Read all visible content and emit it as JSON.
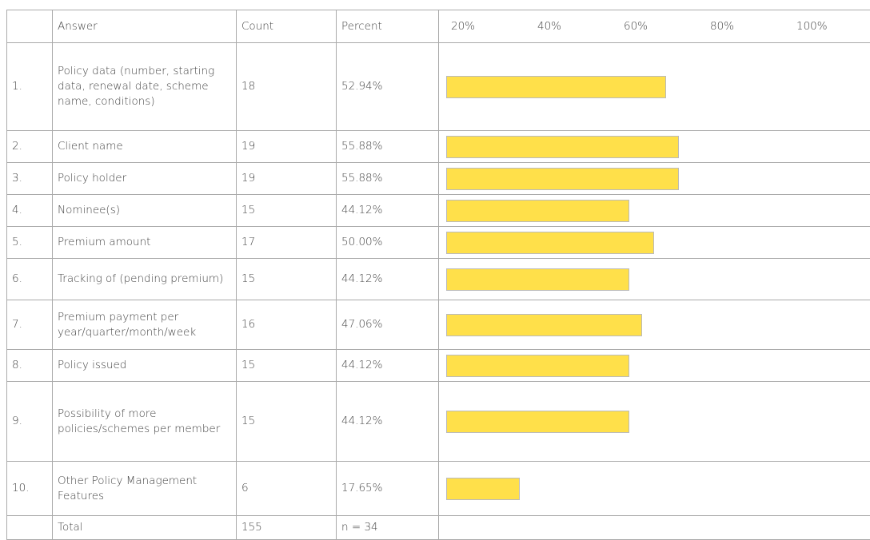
{
  "table": {
    "header": {
      "answer": "Answer",
      "count": "Count",
      "percent": "Percent"
    },
    "axis_ticks": [
      {
        "value": 20,
        "label": "20%"
      },
      {
        "value": 40,
        "label": "40%"
      },
      {
        "value": 60,
        "label": "60%"
      },
      {
        "value": 80,
        "label": "80%"
      },
      {
        "value": 100,
        "label": "100%"
      }
    ],
    "bar_color": "#ffe04a",
    "rows": [
      {
        "index": "1.",
        "answer": "Policy data (number, starting data, renewal date, scheme name, conditions)",
        "count": 18,
        "percent": {
          "value": 52.94,
          "label": "52.94%"
        }
      },
      {
        "index": "2.",
        "answer": "Client name",
        "count": 19,
        "percent": {
          "value": 55.88,
          "label": "55.88%"
        }
      },
      {
        "index": "3.",
        "answer": "Policy holder",
        "count": 19,
        "percent": {
          "value": 55.88,
          "label": "55.88%"
        }
      },
      {
        "index": "4.",
        "answer": "Nominee(s)",
        "count": 15,
        "percent": {
          "value": 44.12,
          "label": "44.12%"
        }
      },
      {
        "index": "5.",
        "answer": "Premium amount",
        "count": 17,
        "percent": {
          "value": 50,
          "label": "50.00%"
        }
      },
      {
        "index": "6.",
        "answer": "Tracking of (pending premium)",
        "count": 15,
        "percent": {
          "value": 44.12,
          "label": "44.12%"
        }
      },
      {
        "index": "7.",
        "answer": "Premium payment per year/quarter/month/week",
        "count": 16,
        "percent": {
          "value": 47.06,
          "label": "47.06%"
        }
      },
      {
        "index": "8.",
        "answer": "Policy issued",
        "count": 15,
        "percent": {
          "value": 44.12,
          "label": "44.12%"
        }
      },
      {
        "index": "9.",
        "answer": "Possibility of more policies/schemes per member",
        "count": 15,
        "percent": {
          "value": 44.12,
          "label": "44.12%"
        }
      },
      {
        "index": "10.",
        "answer": "Other Policy Management Features",
        "count": 6,
        "percent": {
          "value": 17.65,
          "label": "17.65%"
        }
      }
    ],
    "total": {
      "label": "Total",
      "count": 155,
      "n": "n = 34"
    }
  }
}
